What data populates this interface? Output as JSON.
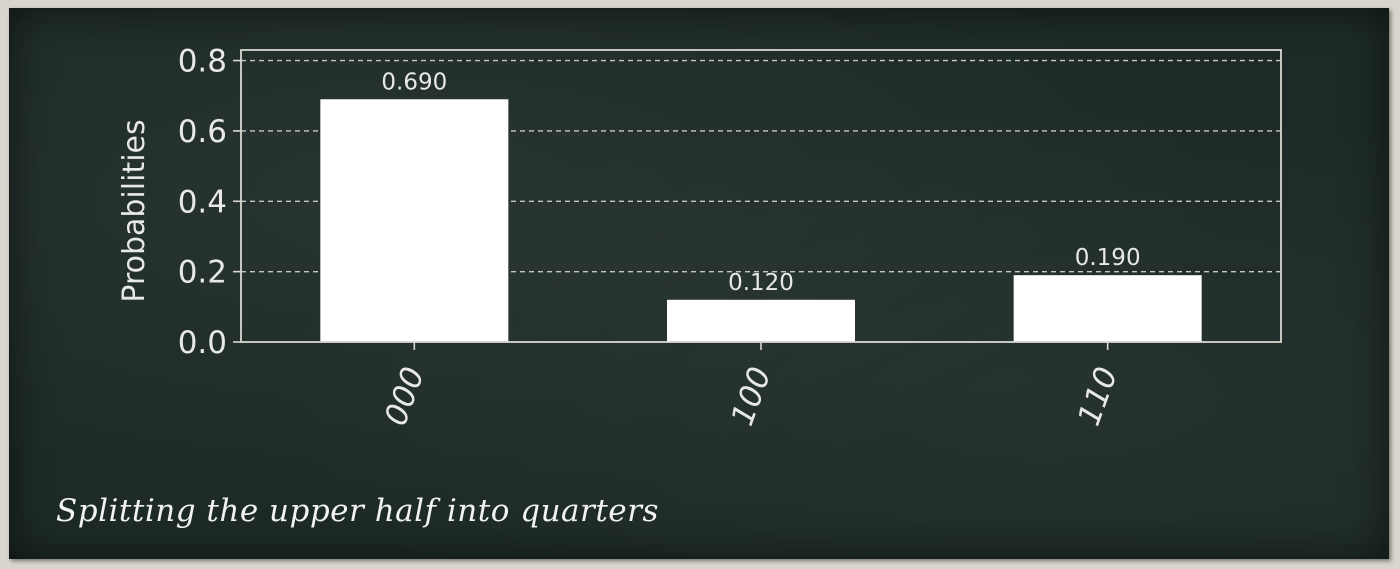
{
  "chart_data": {
    "type": "bar",
    "categories": [
      "000",
      "100",
      "110"
    ],
    "values": [
      0.69,
      0.12,
      0.19
    ],
    "data_labels": [
      "0.690",
      "0.120",
      "0.190"
    ],
    "ylabel": "Probabilities",
    "xlabel": "",
    "ylim": [
      0,
      0.83
    ],
    "yticks": [
      "0.0",
      "0.2",
      "0.4",
      "0.6",
      "0.8"
    ],
    "grid": true,
    "colors": {
      "bar": "#ffffff",
      "axis": "#d8d8d0",
      "grid": "#c8c8c0",
      "text": "#e8e8e8"
    }
  },
  "caption": "Splitting the upper half into quarters"
}
